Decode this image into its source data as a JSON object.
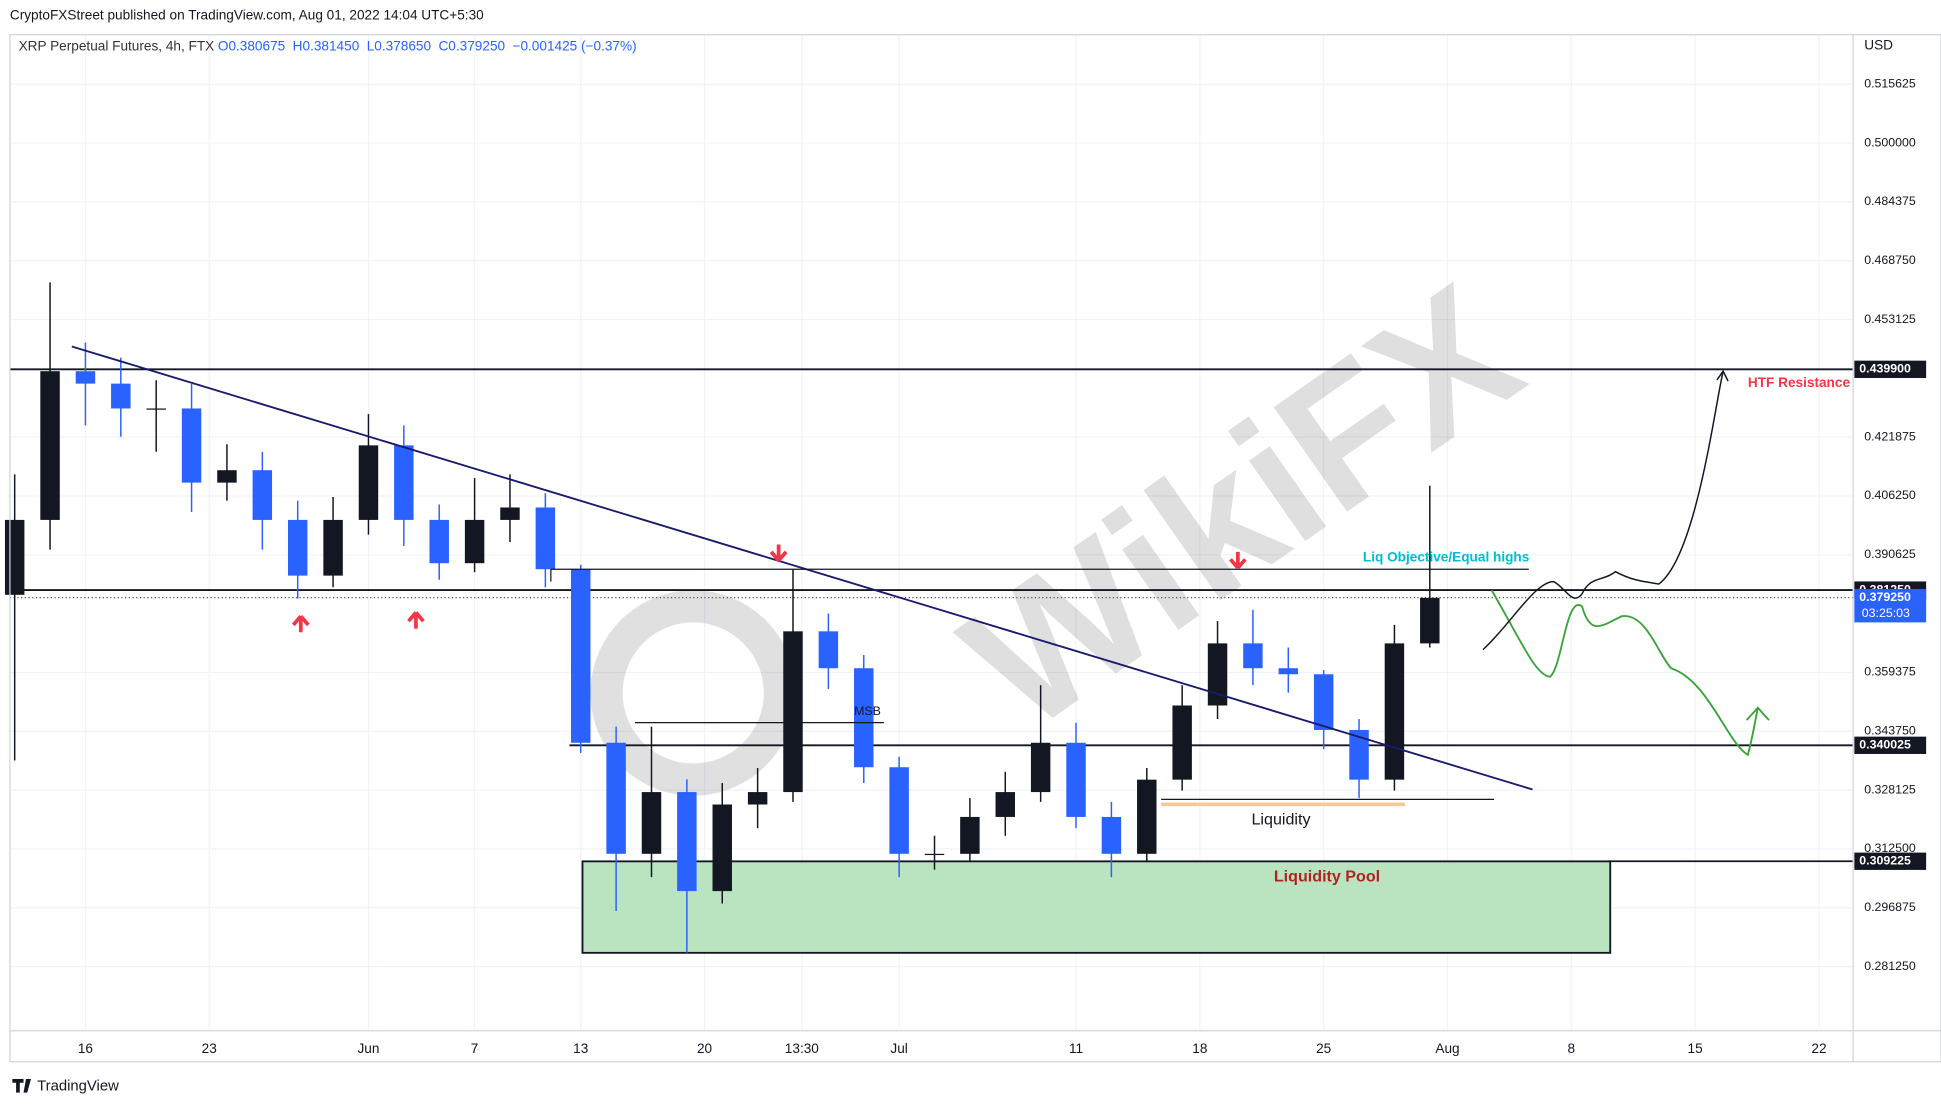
{
  "chart_data": {
    "type": "candlestick",
    "header": "CryptoFXStreet published on TradingView.com, Aug 01, 2022 14:04 UTC+5:30",
    "symbol": "XRP Perpetual Futures, 4h, FTX",
    "ohlc_text": [
      "O0.380675",
      "H0.381450",
      "L0.378650",
      "C0.379250",
      "−0.001425 (−0.37%)"
    ],
    "currency": "USD",
    "footer": "TradingView",
    "watermark": "WikiFX",
    "up_color": "#131722",
    "down_color": "#2962ff",
    "grid": true,
    "x": [
      -4,
      -2,
      0,
      2,
      4,
      6,
      8,
      10,
      12,
      14,
      16,
      18,
      20,
      22,
      24,
      26,
      28,
      30,
      32,
      34,
      36,
      38,
      40,
      42,
      44,
      46,
      48,
      50,
      52,
      54,
      56,
      58,
      60,
      62,
      64,
      66,
      68,
      70,
      72,
      74,
      76
    ],
    "open": [
      0.38,
      0.3999,
      0.4394,
      0.4361,
      0.4295,
      0.4295,
      0.4098,
      0.4131,
      0.3999,
      0.3851,
      0.3999,
      0.4197,
      0.3999,
      0.3884,
      0.3999,
      0.4032,
      0.3868,
      0.3407,
      0.3112,
      0.3276,
      0.3013,
      0.3243,
      0.3276,
      0.3703,
      0.3605,
      0.3342,
      0.3112,
      0.3112,
      0.321,
      0.3276,
      0.3407,
      0.321,
      0.3112,
      0.3309,
      0.3506,
      0.3671,
      0.3605,
      0.3589,
      0.3441,
      0.3309,
      0.3671
    ],
    "high": [
      0.412,
      0.463,
      0.447,
      0.443,
      0.437,
      0.436,
      0.42,
      0.418,
      0.405,
      0.406,
      0.428,
      0.425,
      0.404,
      0.411,
      0.412,
      0.407,
      0.388,
      0.345,
      0.345,
      0.331,
      0.33,
      0.334,
      0.3868,
      0.375,
      0.364,
      0.337,
      0.316,
      0.326,
      0.333,
      0.356,
      0.346,
      0.325,
      0.334,
      0.356,
      0.373,
      0.376,
      0.366,
      0.36,
      0.347,
      0.372,
      0.409
    ],
    "low": [
      0.336,
      0.392,
      0.425,
      0.422,
      0.418,
      0.402,
      0.405,
      0.392,
      0.379,
      0.382,
      0.396,
      0.393,
      0.384,
      0.386,
      0.394,
      0.382,
      0.338,
      0.296,
      0.305,
      0.2849,
      0.298,
      0.318,
      0.325,
      0.355,
      0.33,
      0.305,
      0.307,
      0.309,
      0.316,
      0.325,
      0.318,
      0.305,
      0.309,
      0.328,
      0.347,
      0.356,
      0.354,
      0.339,
      0.326,
      0.328,
      0.366
    ],
    "close": [
      0.3999,
      0.4394,
      0.4361,
      0.4295,
      0.4295,
      0.4098,
      0.4131,
      0.3999,
      0.3851,
      0.3999,
      0.4197,
      0.3999,
      0.3884,
      0.3999,
      0.4032,
      0.3868,
      0.3407,
      0.3112,
      0.3276,
      0.3013,
      0.3243,
      0.3276,
      0.3703,
      0.3605,
      0.3342,
      0.3112,
      0.3112,
      0.321,
      0.3276,
      0.3407,
      0.321,
      0.3112,
      0.3309,
      0.3506,
      0.3671,
      0.3605,
      0.3589,
      0.3441,
      0.3309,
      0.3671,
      0.3792
    ],
    "xlim": [
      -4.27,
      99.93
    ],
    "ylim": [
      0.2642,
      0.5288
    ],
    "xticks": [
      {
        "value": 0,
        "label": "16"
      },
      {
        "value": 7,
        "label": "23"
      },
      {
        "value": 16,
        "label": "Jun"
      },
      {
        "value": 22,
        "label": "7"
      },
      {
        "value": 28,
        "label": "13"
      },
      {
        "value": 35,
        "label": "20"
      },
      {
        "value": 40.5,
        "label": "13:30"
      },
      {
        "value": 46,
        "label": "Jul"
      },
      {
        "value": 56,
        "label": "11"
      },
      {
        "value": 63,
        "label": "18"
      },
      {
        "value": 70,
        "label": "25"
      },
      {
        "value": 77,
        "label": "Aug"
      },
      {
        "value": 84,
        "label": "8"
      },
      {
        "value": 91,
        "label": "15"
      },
      {
        "value": 98,
        "label": "22"
      }
    ],
    "yticks": [
      {
        "value": 0.28125,
        "label": "0.281250"
      },
      {
        "value": 0.296875,
        "label": "0.296875"
      },
      {
        "value": 0.3125,
        "label": "0.312500"
      },
      {
        "value": 0.328125,
        "label": "0.328125"
      },
      {
        "value": 0.34375,
        "label": "0.343750"
      },
      {
        "value": 0.359375,
        "label": "0.359375"
      },
      {
        "value": 0.390625,
        "label": "0.390625"
      },
      {
        "value": 0.40625,
        "label": "0.406250"
      },
      {
        "value": 0.421875,
        "label": "0.421875"
      },
      {
        "value": 0.453125,
        "label": "0.453125"
      },
      {
        "value": 0.46875,
        "label": "0.468750"
      },
      {
        "value": 0.484375,
        "label": "0.484375"
      },
      {
        "value": 0.5,
        "label": "0.500000"
      },
      {
        "value": 0.515625,
        "label": "0.515625"
      }
    ],
    "levels": [
      {
        "value": 0.4399,
        "label": "0.439900"
      },
      {
        "value": 0.38125,
        "label": "0.381250"
      },
      {
        "value": 0.340025,
        "label": "0.340025"
      },
      {
        "value": 0.309225,
        "label": "0.309225"
      }
    ],
    "last_price": {
      "value": 0.37925,
      "label": "0.379250",
      "countdown": "03:25:03"
    },
    "zone": {
      "x": [
        28.1,
        86.2
      ],
      "y": [
        0.2849,
        0.3092
      ],
      "label": "Liquidity Pool"
    },
    "annotations": {
      "htf": "HTF Resistance",
      "liq_obj": "Liq Objective/Equal highs",
      "msb": "MSB",
      "liquidity": "Liquidity"
    }
  }
}
